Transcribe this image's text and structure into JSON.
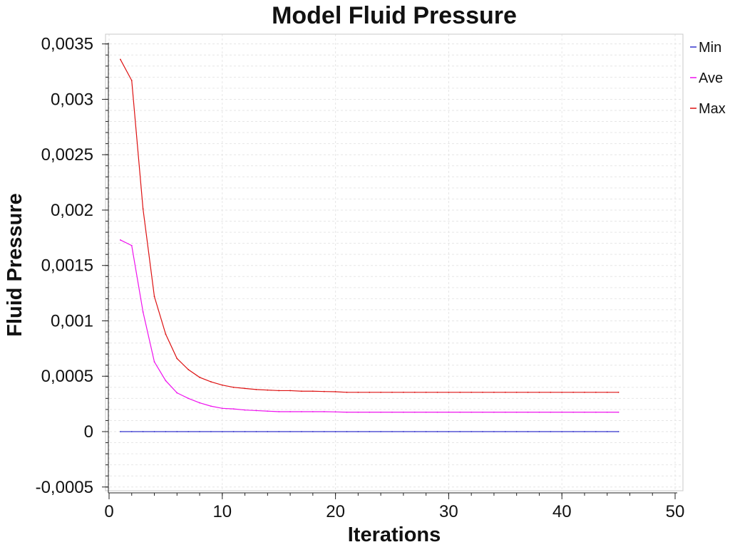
{
  "chart_data": {
    "type": "line",
    "title": "Model Fluid Pressure",
    "xlabel": "Iterations",
    "ylabel": "Fluid Pressure",
    "xlim": [
      0,
      50
    ],
    "ylim": [
      -0.0005,
      0.0035
    ],
    "x_ticks": [
      0,
      10,
      20,
      30,
      40,
      50
    ],
    "x_tick_labels": [
      "0",
      "10",
      "20",
      "30",
      "40",
      "50"
    ],
    "y_ticks": [
      -0.0005,
      0,
      0.0005,
      0.001,
      0.0015,
      0.002,
      0.0025,
      0.003,
      0.0035
    ],
    "y_tick_labels": [
      "-0,0005",
      "0",
      "0,0005",
      "0,001",
      "0,0015",
      "0,002",
      "0,0025",
      "0,003",
      "0,0035"
    ],
    "grid": true,
    "legend_position": "top-right",
    "x": [
      1,
      2,
      3,
      4,
      5,
      6,
      7,
      8,
      9,
      10,
      11,
      12,
      13,
      14,
      15,
      16,
      17,
      18,
      19,
      20,
      21,
      22,
      23,
      24,
      25,
      26,
      27,
      28,
      29,
      30,
      31,
      32,
      33,
      34,
      35,
      36,
      37,
      38,
      39,
      40,
      41,
      42,
      43,
      44,
      45
    ],
    "series": [
      {
        "name": "Min",
        "color": "#3333cc",
        "values": [
          0,
          0,
          0,
          0,
          0,
          0,
          0,
          0,
          0,
          0,
          0,
          0,
          0,
          0,
          0,
          0,
          0,
          0,
          0,
          0,
          0,
          0,
          0,
          0,
          0,
          0,
          0,
          0,
          0,
          0,
          0,
          0,
          0,
          0,
          0,
          0,
          0,
          0,
          0,
          0,
          0,
          0,
          0,
          0,
          0
        ]
      },
      {
        "name": "Ave",
        "color": "#ee11ee",
        "values": [
          0.00173,
          0.00168,
          0.00108,
          0.00063,
          0.00046,
          0.00035,
          0.0003,
          0.00026,
          0.00023,
          0.00021,
          0.000205,
          0.000195,
          0.00019,
          0.000185,
          0.00018,
          0.00018,
          0.00018,
          0.00018,
          0.00018,
          0.000178,
          0.000175,
          0.000175,
          0.000175,
          0.000175,
          0.000175,
          0.000175,
          0.000175,
          0.000175,
          0.000175,
          0.000175,
          0.000175,
          0.000175,
          0.000175,
          0.000175,
          0.000175,
          0.000175,
          0.000175,
          0.000175,
          0.000175,
          0.000175,
          0.000175,
          0.000175,
          0.000175,
          0.000175,
          0.000175
        ]
      },
      {
        "name": "Max",
        "color": "#dd1111",
        "values": [
          0.00336,
          0.00317,
          0.00201,
          0.00122,
          0.00088,
          0.00066,
          0.00056,
          0.00049,
          0.00045,
          0.00042,
          0.0004,
          0.00039,
          0.00038,
          0.000375,
          0.00037,
          0.00037,
          0.000365,
          0.000365,
          0.000362,
          0.00036,
          0.000355,
          0.000355,
          0.000355,
          0.000355,
          0.000355,
          0.000355,
          0.000355,
          0.000355,
          0.000355,
          0.000355,
          0.000355,
          0.000355,
          0.000355,
          0.000355,
          0.000355,
          0.000355,
          0.000355,
          0.000355,
          0.000355,
          0.000355,
          0.000355,
          0.000355,
          0.000355,
          0.000355,
          0.000355
        ]
      }
    ]
  }
}
